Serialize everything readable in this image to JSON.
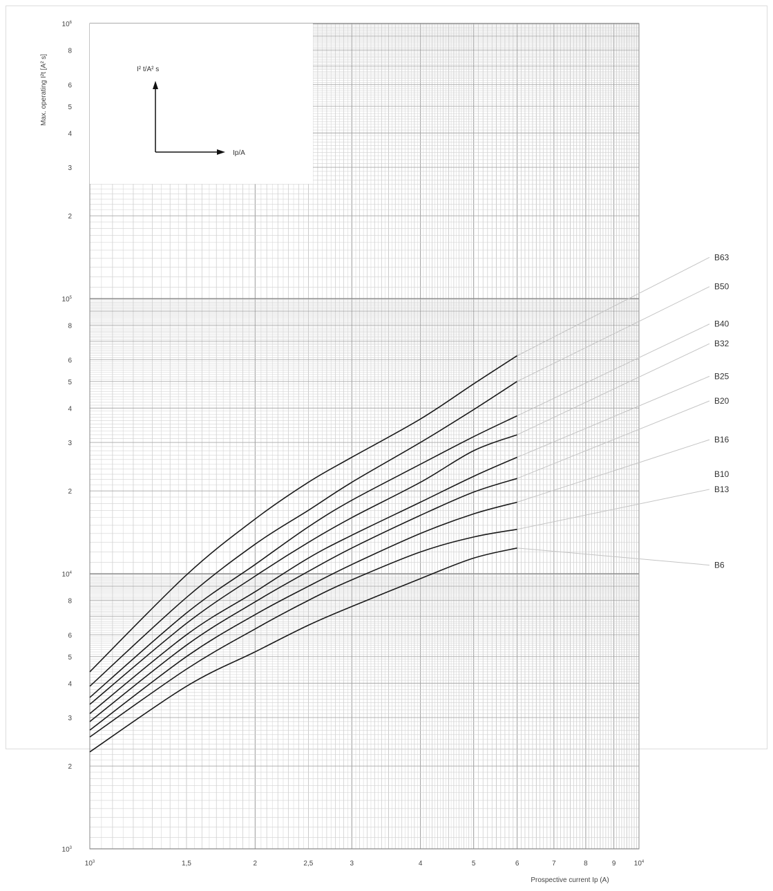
{
  "chart_data": {
    "type": "line",
    "xlabel": "Prospective current Ip (A)",
    "ylabel": "Max. operating I²t [A² s]",
    "xscale": "log",
    "yscale": "log",
    "xlim": [
      1000,
      10000
    ],
    "ylim": [
      1000,
      1000000
    ],
    "grid": true,
    "legend": "right, leader lines to curve ends",
    "inset": {
      "y_arrow_label": "I² t/A² s",
      "x_arrow_label": "Ip/A"
    },
    "x_ticks": [
      {
        "value": 1000,
        "base": "10",
        "exp": "3"
      },
      {
        "value": 1500,
        "label": "1,5"
      },
      {
        "value": 2000,
        "label": "2"
      },
      {
        "value": 2500,
        "label": "2,5"
      },
      {
        "value": 3000,
        "label": "3"
      },
      {
        "value": 4000,
        "label": "4"
      },
      {
        "value": 5000,
        "label": "5"
      },
      {
        "value": 6000,
        "label": "6"
      },
      {
        "value": 7000,
        "label": "7"
      },
      {
        "value": 8000,
        "label": "8"
      },
      {
        "value": 9000,
        "label": "9"
      },
      {
        "value": 10000,
        "base": "10",
        "exp": "4"
      }
    ],
    "y_ticks": [
      {
        "value": 1000,
        "base": "10",
        "exp": "3"
      },
      {
        "value": 2000,
        "label": "2"
      },
      {
        "value": 3000,
        "label": "3"
      },
      {
        "value": 4000,
        "label": "4"
      },
      {
        "value": 5000,
        "label": "5"
      },
      {
        "value": 6000,
        "label": "6"
      },
      {
        "value": 8000,
        "label": "8"
      },
      {
        "value": 10000,
        "base": "10",
        "exp": "4"
      },
      {
        "value": 20000,
        "label": "2"
      },
      {
        "value": 30000,
        "label": "3"
      },
      {
        "value": 40000,
        "label": "4"
      },
      {
        "value": 50000,
        "label": "5"
      },
      {
        "value": 60000,
        "label": "6"
      },
      {
        "value": 80000,
        "label": "8"
      },
      {
        "value": 100000,
        "base": "10",
        "exp": "5"
      },
      {
        "value": 200000,
        "label": "2"
      },
      {
        "value": 300000,
        "label": "3"
      },
      {
        "value": 400000,
        "label": "4"
      },
      {
        "value": 500000,
        "label": "5"
      },
      {
        "value": 600000,
        "label": "6"
      },
      {
        "value": 800000,
        "label": "8"
      },
      {
        "value": 1000000,
        "base": "10",
        "exp": "6"
      }
    ],
    "x": [
      1000,
      1500,
      2000,
      2500,
      3000,
      4000,
      5000,
      6000
    ],
    "series": [
      {
        "name": "B63",
        "values": [
          4400,
          9900,
          15800,
          21500,
          26500,
          36500,
          49000,
          62000
        ],
        "label_y": 138000
      },
      {
        "name": "B50",
        "values": [
          3900,
          8200,
          12800,
          17000,
          21500,
          30000,
          39500,
          50000
        ],
        "label_y": 108000
      },
      {
        "name": "B40",
        "values": [
          3550,
          7200,
          10800,
          14800,
          18500,
          25000,
          31500,
          37500
        ],
        "label_y": 79000
      },
      {
        "name": "B32",
        "values": [
          3350,
          6600,
          9800,
          13000,
          16000,
          21500,
          28000,
          32000
        ],
        "label_y": 67000
      },
      {
        "name": "B25",
        "values": [
          3100,
          6000,
          8600,
          11400,
          13800,
          18200,
          22600,
          26500
        ],
        "label_y": 51000
      },
      {
        "name": "B20",
        "values": [
          2900,
          5500,
          7900,
          10200,
          12400,
          16300,
          19800,
          22200
        ],
        "label_y": 41500
      },
      {
        "name": "B16",
        "values": [
          2700,
          5000,
          7100,
          9000,
          10800,
          14000,
          16500,
          18200
        ],
        "label_y": 30000
      },
      {
        "name": "B13",
        "values": [
          2550,
          4500,
          6300,
          8000,
          9500,
          12000,
          13600,
          14500
        ],
        "label_y": 19800
      },
      {
        "name": "B10",
        "values": [
          2250,
          3900,
          5200,
          6500,
          7600,
          9600,
          11400,
          12400
        ],
        "label_y": 22500
      },
      {
        "name": "B6",
        "values": [
          2250,
          3900,
          5200,
          6500,
          7600,
          9600,
          11400,
          12400
        ],
        "label_y": 10500
      }
    ]
  }
}
